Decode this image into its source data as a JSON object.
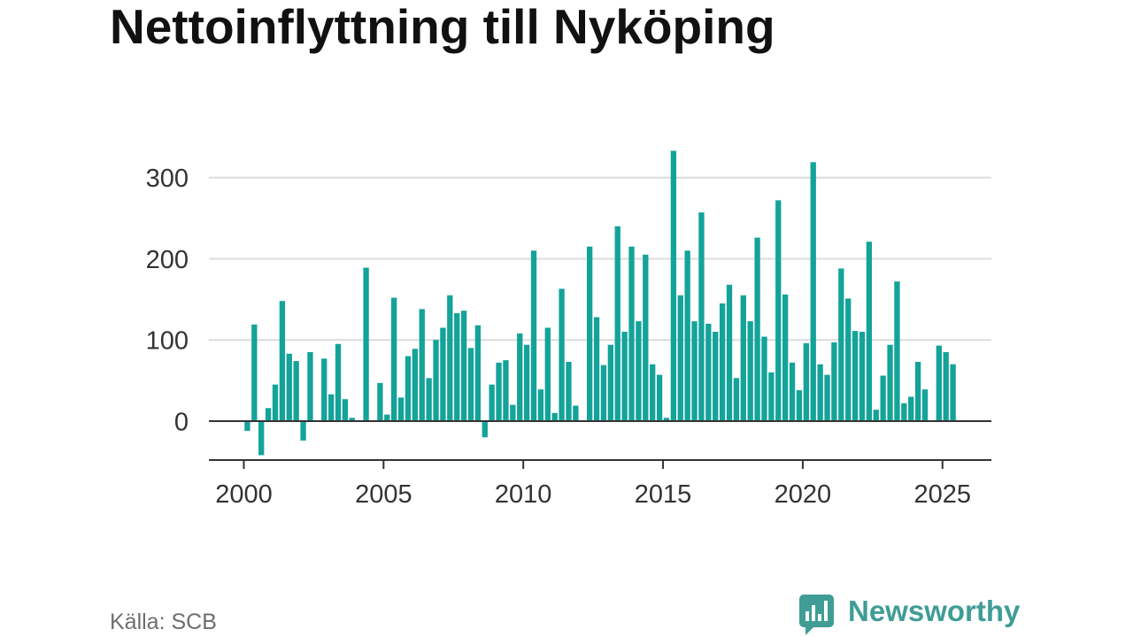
{
  "chart_data": {
    "type": "bar",
    "title": "Nettoinflyttning till Nyköping",
    "x": [
      "2000-Q1",
      "2000-Q2",
      "2000-Q3",
      "2000-Q4",
      "2001-Q1",
      "2001-Q2",
      "2001-Q3",
      "2001-Q4",
      "2002-Q1",
      "2002-Q2",
      "2002-Q3",
      "2002-Q4",
      "2003-Q1",
      "2003-Q2",
      "2003-Q3",
      "2003-Q4",
      "2004-Q1",
      "2004-Q2",
      "2004-Q3",
      "2004-Q4",
      "2005-Q1",
      "2005-Q2",
      "2005-Q3",
      "2005-Q4",
      "2006-Q1",
      "2006-Q2",
      "2006-Q3",
      "2006-Q4",
      "2007-Q1",
      "2007-Q2",
      "2007-Q3",
      "2007-Q4",
      "2008-Q1",
      "2008-Q2",
      "2008-Q3",
      "2008-Q4",
      "2009-Q1",
      "2009-Q2",
      "2009-Q3",
      "2009-Q4",
      "2010-Q1",
      "2010-Q2",
      "2010-Q3",
      "2010-Q4",
      "2011-Q1",
      "2011-Q2",
      "2011-Q3",
      "2011-Q4",
      "2012-Q1",
      "2012-Q2",
      "2012-Q3",
      "2012-Q4",
      "2013-Q1",
      "2013-Q2",
      "2013-Q3",
      "2013-Q4",
      "2014-Q1",
      "2014-Q2",
      "2014-Q3",
      "2014-Q4",
      "2015-Q1",
      "2015-Q2",
      "2015-Q3",
      "2015-Q4",
      "2016-Q1",
      "2016-Q2",
      "2016-Q3",
      "2016-Q4",
      "2017-Q1",
      "2017-Q2",
      "2017-Q3",
      "2017-Q4",
      "2018-Q1",
      "2018-Q2",
      "2018-Q3",
      "2018-Q4",
      "2019-Q1",
      "2019-Q2",
      "2019-Q3",
      "2019-Q4",
      "2020-Q1",
      "2020-Q2",
      "2020-Q3",
      "2020-Q4",
      "2021-Q1",
      "2021-Q2",
      "2021-Q3",
      "2021-Q4",
      "2022-Q1",
      "2022-Q2",
      "2022-Q3",
      "2022-Q4",
      "2023-Q1",
      "2023-Q2",
      "2023-Q3",
      "2023-Q4",
      "2024-Q1",
      "2024-Q2",
      "2024-Q3",
      "2024-Q4",
      "2025-Q1",
      "2025-Q2"
    ],
    "values": [
      -12,
      119,
      -42,
      16,
      45,
      148,
      83,
      74,
      -24,
      85,
      0,
      77,
      33,
      95,
      27,
      4,
      0,
      189,
      0,
      47,
      8,
      152,
      29,
      80,
      89,
      138,
      53,
      100,
      115,
      155,
      133,
      136,
      90,
      118,
      -20,
      45,
      72,
      75,
      20,
      108,
      94,
      210,
      39,
      115,
      10,
      163,
      73,
      19,
      0,
      215,
      128,
      69,
      94,
      240,
      110,
      215,
      123,
      205,
      70,
      57,
      4,
      333,
      155,
      210,
      123,
      257,
      120,
      110,
      145,
      168,
      53,
      155,
      123,
      226,
      104,
      60,
      272,
      156,
      72,
      38,
      96,
      319,
      70,
      57,
      97,
      188,
      151,
      111,
      110,
      221,
      14,
      56,
      94,
      172,
      22,
      30,
      73,
      39,
      0,
      93,
      85,
      70
    ],
    "x_ticks": [
      "2000",
      "2005",
      "2010",
      "2015",
      "2020",
      "2025"
    ],
    "y_ticks": [
      "0",
      "100",
      "200",
      "300"
    ],
    "xlim": [
      "1998-10-01",
      "2026-10-01"
    ],
    "ylim": [
      -48,
      340
    ],
    "grid": "horizontal",
    "legend": "none"
  },
  "source": "Källa: SCB",
  "brand": {
    "name": "Newsworthy",
    "icon": "speech-bubble-chart-icon"
  },
  "colors": {
    "bar": "#13a399",
    "brand": "#3f9d96"
  }
}
